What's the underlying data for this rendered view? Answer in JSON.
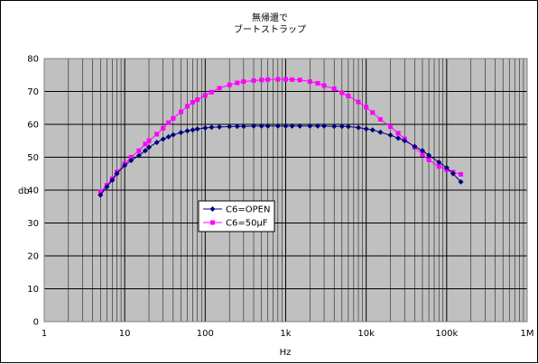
{
  "chart_data": {
    "type": "line",
    "title_lines": [
      "無帰還で",
      "ブートストラップ"
    ],
    "xlabel": "Hz",
    "ylabel": "db",
    "x_scale": "log",
    "xlim": [
      1,
      1000000
    ],
    "ylim": [
      0,
      80
    ],
    "x_ticks": [
      1,
      10,
      100,
      1000,
      10000,
      100000,
      1000000
    ],
    "x_tick_labels": [
      "1",
      "10",
      "100",
      "1k",
      "10k",
      "100k",
      "1M"
    ],
    "y_ticks": [
      0,
      10,
      20,
      30,
      40,
      50,
      60,
      70,
      80
    ],
    "y_tick_labels": [
      "0",
      "10",
      "20",
      "30",
      "40",
      "50",
      "60",
      "70",
      "80"
    ],
    "grid": "major and minor",
    "legend_placement": "center-left",
    "plot_background": "#c0c0c0",
    "series": [
      {
        "name": "C6=OPEN",
        "color": "#000080",
        "marker": "diamond",
        "x": [
          5,
          6,
          7,
          8,
          10,
          12,
          15,
          18,
          20,
          25,
          30,
          35,
          40,
          50,
          60,
          70,
          80,
          100,
          120,
          150,
          200,
          250,
          300,
          400,
          500,
          600,
          800,
          1000,
          1200,
          1500,
          2000,
          2500,
          3000,
          4000,
          5000,
          6000,
          8000,
          10000,
          12000,
          15000,
          20000,
          25000,
          30000,
          40000,
          50000,
          60000,
          80000,
          100000,
          120000,
          150000
        ],
        "y": [
          38.5,
          41,
          43,
          45,
          47.5,
          49,
          50.5,
          52,
          53,
          54.5,
          55.5,
          56.2,
          56.8,
          57.5,
          58,
          58.3,
          58.6,
          58.9,
          59.1,
          59.2,
          59.3,
          59.4,
          59.4,
          59.5,
          59.5,
          59.5,
          59.5,
          59.5,
          59.5,
          59.5,
          59.5,
          59.5,
          59.5,
          59.4,
          59.4,
          59.3,
          59,
          58.6,
          58.3,
          57.6,
          56.7,
          55.8,
          55,
          53.3,
          52,
          50.6,
          48.5,
          46.8,
          45,
          42.5
        ]
      },
      {
        "name": "C6=50μF",
        "color": "#ff00ff",
        "marker": "square",
        "x": [
          5,
          6,
          7,
          8,
          10,
          12,
          15,
          18,
          20,
          25,
          30,
          35,
          40,
          50,
          60,
          70,
          80,
          100,
          120,
          150,
          200,
          250,
          300,
          400,
          500,
          600,
          800,
          1000,
          1200,
          1500,
          2000,
          2500,
          3000,
          4000,
          5000,
          6000,
          8000,
          10000,
          12000,
          15000,
          20000,
          25000,
          30000,
          40000,
          50000,
          60000,
          80000,
          100000,
          120000,
          150000
        ],
        "y": [
          39.5,
          41.5,
          43.5,
          45.5,
          48,
          50,
          52,
          54,
          55,
          57,
          58.8,
          60.5,
          61.8,
          63.8,
          65.5,
          66.7,
          67.5,
          68.8,
          69.8,
          71,
          72,
          72.6,
          73,
          73.3,
          73.5,
          73.6,
          73.7,
          73.7,
          73.6,
          73.5,
          73,
          72.5,
          71.8,
          70.8,
          69.6,
          68.6,
          66.8,
          65.2,
          63.6,
          61.5,
          59.3,
          57.3,
          55.6,
          53,
          50.8,
          49.2,
          47.2,
          46.2,
          45.5,
          44.8
        ]
      }
    ]
  }
}
